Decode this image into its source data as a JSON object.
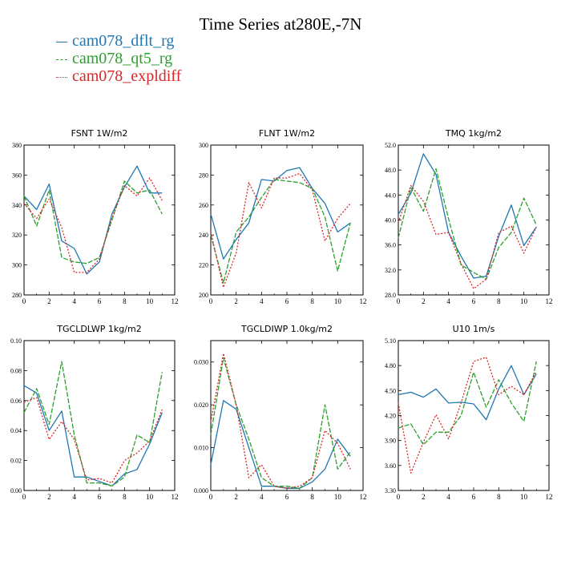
{
  "title": "Time Series at280E,-7N",
  "legend": [
    {
      "name": "cam078_dflt_rg",
      "color": "#1f77b4",
      "dash": "solid"
    },
    {
      "name": "cam078_qt5_rg",
      "color": "#2ca02c",
      "dash": "dashed"
    },
    {
      "name": "cam078_expldiff",
      "color": "#d62728",
      "dash": "dotted"
    }
  ],
  "chart_data": [
    {
      "type": "line",
      "title": "FSNT  1W/m2",
      "x": [
        0,
        1,
        2,
        3,
        4,
        5,
        6,
        7,
        8,
        9,
        10,
        11
      ],
      "xlim": [
        0,
        12
      ],
      "xticks": [
        0,
        2,
        4,
        6,
        8,
        10,
        12
      ],
      "ylim": [
        280,
        380
      ],
      "yticks": [
        280,
        300,
        320,
        340,
        360,
        380
      ],
      "ytick_labels": [
        "280",
        "300",
        "320",
        "340",
        "360",
        "380"
      ],
      "series": [
        {
          "name": "cam078_dflt_rg",
          "values": [
            346,
            337,
            354,
            316,
            311,
            294,
            302,
            334,
            352,
            366,
            348,
            348
          ]
        },
        {
          "name": "cam078_qt5_rg",
          "values": [
            346,
            326,
            350,
            305,
            302,
            301,
            305,
            330,
            356,
            348,
            350,
            334
          ]
        },
        {
          "name": "cam078_expldiff",
          "values": [
            341,
            331,
            344,
            325,
            295,
            295,
            304,
            331,
            353,
            346,
            358,
            343
          ]
        }
      ]
    },
    {
      "type": "line",
      "title": "FLNT  1W/m2",
      "x": [
        0,
        1,
        2,
        3,
        4,
        5,
        6,
        7,
        8,
        9,
        10,
        11
      ],
      "xlim": [
        0,
        12
      ],
      "xticks": [
        0,
        2,
        4,
        6,
        8,
        10,
        12
      ],
      "ylim": [
        200,
        300
      ],
      "yticks": [
        200,
        220,
        240,
        260,
        280,
        300
      ],
      "ytick_labels": [
        "200",
        "220",
        "240",
        "260",
        "280",
        "300"
      ],
      "series": [
        {
          "name": "cam078_dflt_rg",
          "values": [
            254,
            224,
            237,
            248,
            277,
            276,
            283,
            285,
            271,
            261,
            242,
            248
          ]
        },
        {
          "name": "cam078_qt5_rg",
          "values": [
            240,
            208,
            242,
            252,
            265,
            277,
            276,
            275,
            271,
            252,
            216,
            248
          ]
        },
        {
          "name": "cam078_expldiff",
          "values": [
            242,
            205,
            228,
            275,
            258,
            278,
            278,
            281,
            270,
            236,
            251,
            261
          ]
        }
      ]
    },
    {
      "type": "line",
      "title": "TMQ  1kg/m2",
      "x": [
        0,
        1,
        2,
        3,
        4,
        5,
        6,
        7,
        8,
        9,
        10,
        11
      ],
      "xlim": [
        0,
        12
      ],
      "xticks": [
        0,
        2,
        4,
        6,
        8,
        10,
        12
      ],
      "ylim": [
        28,
        52
      ],
      "yticks": [
        28,
        32,
        36,
        40,
        44,
        48,
        52
      ],
      "ytick_labels": [
        "28.0",
        "32.0",
        "36.0",
        "40.0",
        "44.0",
        "48.0",
        "52.0"
      ],
      "series": [
        {
          "name": "cam078_dflt_rg",
          "values": [
            40.9,
            44.3,
            50.6,
            47.3,
            38.0,
            34.2,
            30.7,
            31.0,
            37.4,
            42.4,
            35.9,
            38.9
          ]
        },
        {
          "name": "cam078_qt5_rg",
          "values": [
            37.1,
            45.2,
            41.4,
            48.2,
            40.2,
            32.8,
            31.6,
            30.5,
            35.6,
            38.0,
            43.5,
            39.2
          ]
        },
        {
          "name": "cam078_expldiff",
          "values": [
            39.6,
            45.5,
            43.0,
            37.7,
            38.0,
            33.0,
            29.0,
            30.5,
            38.0,
            39.0,
            34.7,
            38.9
          ]
        }
      ]
    },
    {
      "type": "line",
      "title": "TGCLDLWP  1kg/m2",
      "x": [
        0,
        1,
        2,
        3,
        4,
        5,
        6,
        7,
        8,
        9,
        10,
        11
      ],
      "xlim": [
        0,
        12
      ],
      "xticks": [
        0,
        2,
        4,
        6,
        8,
        10,
        12
      ],
      "ylim": [
        0,
        0.1
      ],
      "yticks": [
        0,
        0.02,
        0.04,
        0.06,
        0.08,
        0.1
      ],
      "ytick_labels": [
        "0.00",
        "0.02",
        "0.04",
        "0.06",
        "0.08",
        "0.10"
      ],
      "series": [
        {
          "name": "cam078_dflt_rg",
          "values": [
            0.07,
            0.065,
            0.04,
            0.053,
            0.009,
            0.009,
            0.006,
            0.003,
            0.011,
            0.014,
            0.031,
            0.052
          ]
        },
        {
          "name": "cam078_qt5_rg",
          "values": [
            0.052,
            0.068,
            0.044,
            0.086,
            0.037,
            0.005,
            0.005,
            0.003,
            0.009,
            0.037,
            0.032,
            0.079
          ]
        },
        {
          "name": "cam078_expldiff",
          "values": [
            0.059,
            0.062,
            0.034,
            0.046,
            0.034,
            0.007,
            0.008,
            0.005,
            0.02,
            0.025,
            0.033,
            0.054
          ]
        }
      ]
    },
    {
      "type": "line",
      "title": "TGCLDIWP  1.0kg/m2",
      "x": [
        0,
        1,
        2,
        3,
        4,
        5,
        6,
        7,
        8,
        9,
        10,
        11
      ],
      "xlim": [
        0,
        12
      ],
      "xticks": [
        0,
        2,
        4,
        6,
        8,
        10,
        12
      ],
      "ylim": [
        0,
        0.035
      ],
      "yticks": [
        0,
        0.01,
        0.02,
        0.03
      ],
      "ytick_labels": [
        "0.000",
        "0.010",
        "0.020",
        "0.030"
      ],
      "series": [
        {
          "name": "cam078_dflt_rg",
          "values": [
            0.006,
            0.021,
            0.019,
            0.01,
            0.001,
            0.001,
            0.0005,
            0.0005,
            0.002,
            0.005,
            0.012,
            0.008
          ]
        },
        {
          "name": "cam078_qt5_rg",
          "values": [
            0.013,
            0.031,
            0.02,
            0.012,
            0.003,
            0.001,
            0.001,
            0.0005,
            0.003,
            0.02,
            0.005,
            0.009
          ]
        },
        {
          "name": "cam078_expldiff",
          "values": [
            0.016,
            0.032,
            0.02,
            0.003,
            0.006,
            0.001,
            0.0005,
            0.001,
            0.003,
            0.014,
            0.011,
            0.005
          ]
        }
      ]
    },
    {
      "type": "line",
      "title": "U10  1m/s",
      "x": [
        0,
        1,
        2,
        3,
        4,
        5,
        6,
        7,
        8,
        9,
        10,
        11
      ],
      "xlim": [
        0,
        12
      ],
      "xticks": [
        0,
        2,
        4,
        6,
        8,
        10,
        12
      ],
      "ylim": [
        3.3,
        5.1
      ],
      "yticks": [
        3.3,
        3.6,
        3.9,
        4.2,
        4.5,
        4.8,
        5.1
      ],
      "ytick_labels": [
        "3.30",
        "3.60",
        "3.90",
        "4.20",
        "4.50",
        "4.80",
        "5.10"
      ],
      "series": [
        {
          "name": "cam078_dflt_rg",
          "values": [
            4.45,
            4.48,
            4.42,
            4.52,
            4.35,
            4.36,
            4.34,
            4.15,
            4.52,
            4.8,
            4.45,
            4.7
          ]
        },
        {
          "name": "cam078_qt5_rg",
          "values": [
            4.05,
            4.1,
            3.85,
            4.0,
            4.0,
            4.2,
            4.72,
            4.3,
            4.63,
            4.35,
            4.13,
            4.85
          ]
        },
        {
          "name": "cam078_expldiff",
          "values": [
            4.35,
            3.51,
            3.88,
            4.21,
            3.92,
            4.35,
            4.85,
            4.9,
            4.45,
            4.55,
            4.45,
            4.73
          ]
        }
      ]
    }
  ]
}
